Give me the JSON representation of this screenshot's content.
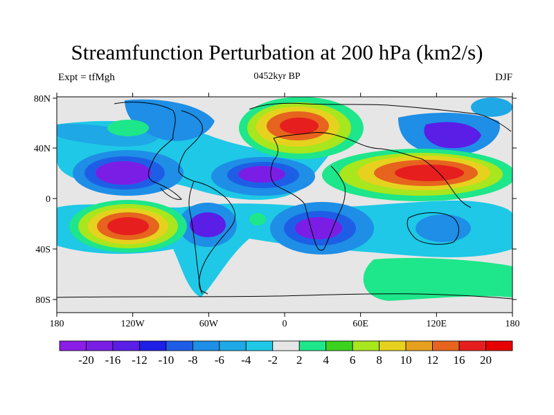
{
  "title": "Streamfunction Perturbation at 200 hPa (km2/s)",
  "left_label": "Expt = tfMgh",
  "center_label": "0452kyr BP",
  "right_label": "DJF",
  "map": {
    "lat_ticks": [
      "80N",
      "40N",
      "0",
      "40S",
      "80S"
    ],
    "lon_ticks": [
      "180",
      "120W",
      "60W",
      "0",
      "60E",
      "120E",
      "180"
    ],
    "background_color": "#e6e6e6"
  },
  "colorbar": {
    "labels": [
      "-20",
      "-16",
      "-12",
      "-10",
      "-8",
      "-6",
      "-4",
      "-2",
      "2",
      "4",
      "6",
      "8",
      "10",
      "12",
      "16",
      "20"
    ],
    "colors": [
      "#8a1ee6",
      "#7a1ee6",
      "#5a1ee6",
      "#1e1ee6",
      "#1e5ee6",
      "#1e8ee6",
      "#1ea8e6",
      "#1ec8e6",
      "#e6e6e6",
      "#1ee68a",
      "#3cd21e",
      "#a8e61e",
      "#e6d21e",
      "#e6a01e",
      "#e6641e",
      "#e61e1e",
      "#e60000"
    ]
  }
}
